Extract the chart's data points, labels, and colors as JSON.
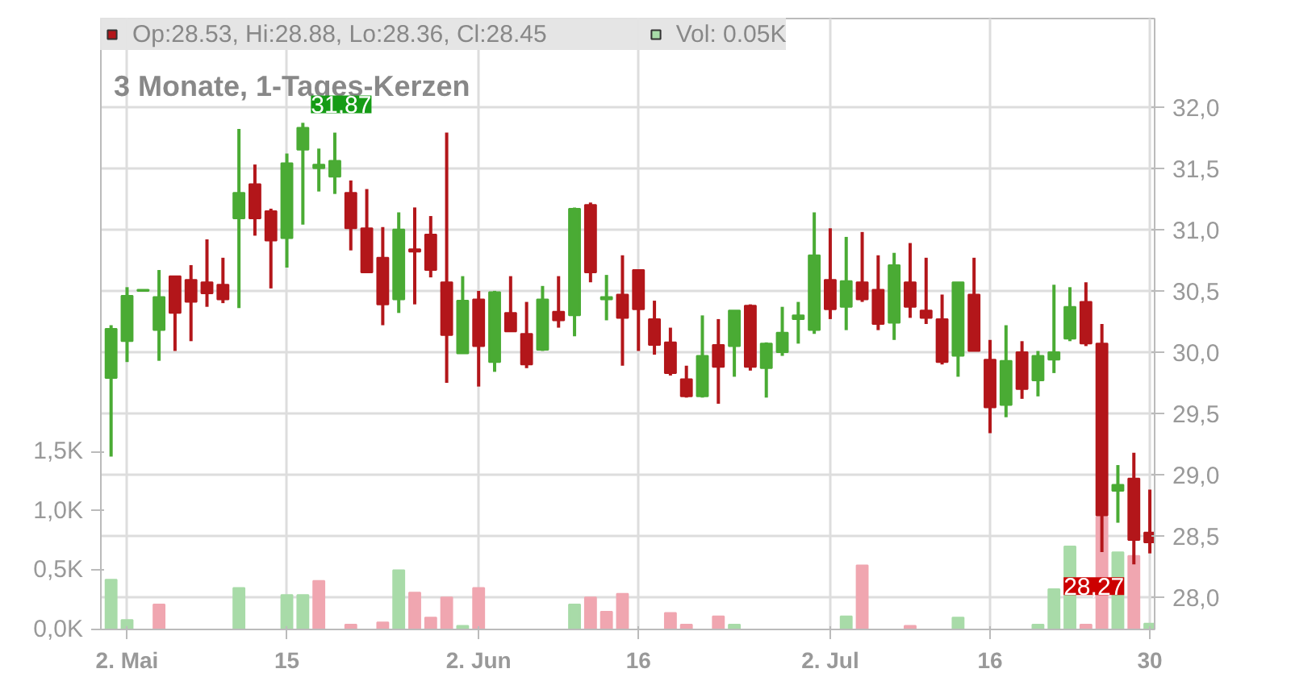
{
  "chart_data": {
    "type": "candlestick",
    "title": "3 Monate, 1-Tages-Kerzen",
    "categories": [
      null,
      "2. Mai",
      null,
      null,
      null,
      null,
      null,
      null,
      null,
      null,
      null,
      "15",
      null,
      null,
      null,
      null,
      null,
      null,
      null,
      null,
      null,
      null,
      null,
      "2. Jun",
      null,
      null,
      null,
      null,
      null,
      null,
      null,
      null,
      null,
      "16",
      null,
      null,
      null,
      null,
      null,
      null,
      null,
      null,
      null,
      null,
      null,
      "2. Jul",
      null,
      null,
      null,
      null,
      null,
      null,
      null,
      null,
      null,
      "16",
      null,
      null,
      null,
      null,
      null,
      null,
      null,
      null,
      null,
      "30"
    ],
    "series": [
      {
        "name": "Op:28.53, Hi:28.88, Lo:28.36, Cl:28.45",
        "color": "#b3161a",
        "colors": [
          "#4aab34",
          "#4aab34",
          "#4aab34",
          "#4aab34",
          "#b3161a",
          "#b3161a",
          "#b3161a",
          "#b3161a",
          "#4aab34",
          "#b3161a",
          "#b3161a",
          "#4aab34",
          "#4aab34",
          "#4aab34",
          "#4aab34",
          "#b3161a",
          "#b3161a",
          "#b3161a",
          "#4aab34",
          "#b3161a",
          "#b3161a",
          "#b3161a",
          "#4aab34",
          "#b3161a",
          "#4aab34",
          "#b3161a",
          "#b3161a",
          "#4aab34",
          "#b3161a",
          "#4aab34",
          "#b3161a",
          "#4aab34",
          "#b3161a",
          "#b3161a",
          "#b3161a",
          "#b3161a",
          "#b3161a",
          "#4aab34",
          "#b3161a",
          "#4aab34",
          "#b3161a",
          "#4aab34",
          "#4aab34",
          "#4aab34",
          "#4aab34",
          "#b3161a",
          "#4aab34",
          "#b3161a",
          "#b3161a",
          "#4aab34",
          "#b3161a",
          "#b3161a",
          "#b3161a",
          "#4aab34",
          "#b3161a",
          "#b3161a",
          "#4aab34",
          "#b3161a",
          "#4aab34",
          "#4aab34",
          "#4aab34",
          "#b3161a",
          "#b3161a",
          "#4aab34",
          "#b3161a",
          "#b3161a"
        ],
        "ohlc": [
          [
            29.79,
            30.22,
            29.15,
            30.19
          ],
          [
            30.09,
            30.53,
            29.92,
            30.46
          ],
          [
            30.5,
            30.51,
            30.5,
            30.51
          ],
          [
            30.18,
            30.67,
            29.93,
            30.45
          ],
          [
            30.62,
            30.62,
            30.01,
            30.32
          ],
          [
            30.59,
            30.71,
            30.09,
            30.41
          ],
          [
            30.57,
            30.92,
            30.37,
            30.48
          ],
          [
            30.55,
            30.77,
            30.4,
            30.43
          ],
          [
            31.09,
            31.82,
            30.36,
            31.3
          ],
          [
            31.37,
            31.53,
            30.95,
            31.09
          ],
          [
            31.15,
            31.17,
            30.52,
            30.91
          ],
          [
            30.93,
            31.62,
            30.69,
            31.54
          ],
          [
            31.65,
            31.87,
            31.04,
            31.83
          ],
          [
            31.5,
            31.66,
            31.31,
            31.53
          ],
          [
            31.43,
            31.79,
            31.29,
            31.56
          ],
          [
            31.3,
            31.4,
            30.83,
            31.01
          ],
          [
            31.01,
            31.33,
            30.65,
            30.65
          ],
          [
            30.77,
            31.02,
            30.22,
            30.39
          ],
          [
            30.43,
            31.14,
            30.32,
            31.0
          ],
          [
            30.84,
            31.18,
            30.39,
            30.82
          ],
          [
            30.96,
            31.11,
            30.61,
            30.67
          ],
          [
            30.57,
            31.79,
            29.75,
            30.14
          ],
          [
            29.99,
            30.62,
            29.99,
            30.42
          ],
          [
            30.43,
            30.5,
            29.72,
            30.05
          ],
          [
            29.92,
            30.5,
            29.84,
            30.49
          ],
          [
            30.32,
            30.62,
            30.17,
            30.17
          ],
          [
            30.15,
            30.41,
            29.87,
            29.9
          ],
          [
            30.02,
            30.54,
            30.01,
            30.43
          ],
          [
            30.33,
            30.62,
            30.2,
            30.26
          ],
          [
            30.3,
            31.18,
            30.13,
            31.17
          ],
          [
            31.2,
            31.22,
            30.57,
            30.65
          ],
          [
            30.43,
            30.63,
            30.26,
            30.45
          ],
          [
            30.47,
            30.79,
            29.89,
            30.28
          ],
          [
            30.67,
            30.67,
            30.01,
            30.35
          ],
          [
            30.27,
            30.42,
            29.98,
            30.06
          ],
          [
            30.08,
            30.2,
            29.81,
            29.83
          ],
          [
            29.78,
            29.89,
            29.63,
            29.64
          ],
          [
            29.64,
            30.3,
            29.63,
            29.97
          ],
          [
            30.06,
            30.27,
            29.58,
            29.88
          ],
          [
            30.05,
            30.34,
            29.8,
            30.34
          ],
          [
            30.38,
            30.39,
            29.85,
            29.88
          ],
          [
            29.87,
            30.08,
            29.63,
            30.07
          ],
          [
            30.0,
            30.37,
            29.97,
            30.16
          ],
          [
            30.27,
            30.41,
            30.07,
            30.3
          ],
          [
            30.18,
            31.14,
            30.15,
            30.79
          ],
          [
            30.59,
            31.01,
            30.27,
            30.35
          ],
          [
            30.37,
            30.94,
            30.18,
            30.58
          ],
          [
            30.57,
            30.98,
            30.41,
            30.43
          ],
          [
            30.51,
            30.79,
            30.18,
            30.23
          ],
          [
            30.24,
            30.81,
            30.1,
            30.71
          ],
          [
            30.57,
            30.89,
            30.28,
            30.37
          ],
          [
            30.34,
            30.77,
            30.23,
            30.28
          ],
          [
            30.27,
            30.47,
            29.9,
            29.92
          ],
          [
            29.97,
            30.57,
            29.8,
            30.57
          ],
          [
            30.47,
            30.77,
            30.01,
            30.01
          ],
          [
            29.94,
            30.1,
            29.34,
            29.55
          ],
          [
            29.57,
            30.22,
            29.47,
            29.93
          ],
          [
            30.0,
            30.09,
            29.62,
            29.7
          ],
          [
            29.77,
            30.01,
            29.64,
            29.97
          ],
          [
            29.94,
            30.55,
            29.83,
            30.0
          ],
          [
            30.11,
            30.53,
            30.09,
            30.37
          ],
          [
            30.41,
            30.57,
            30.05,
            30.07
          ],
          [
            30.07,
            30.23,
            28.37,
            28.67
          ],
          [
            28.87,
            29.08,
            28.61,
            28.92
          ],
          [
            28.97,
            29.18,
            28.27,
            28.47
          ],
          [
            28.53,
            28.88,
            28.36,
            28.45
          ]
        ]
      },
      {
        "type": "bar",
        "name": "Vol: 0.05K",
        "axis": "y2",
        "color": "#a8dba8",
        "colors": [
          "#a8dba8",
          "#a8dba8",
          "#a8dba8",
          "#f0a6b0",
          "#f0a6b0",
          "#f0a6b0",
          "#f0a6b0",
          "#f0a6b0",
          "#a8dba8",
          "#f0a6b0",
          "#f0a6b0",
          "#a8dba8",
          "#a8dba8",
          "#f0a6b0",
          "#a8dba8",
          "#f0a6b0",
          "#f0a6b0",
          "#f0a6b0",
          "#a8dba8",
          "#f0a6b0",
          "#f0a6b0",
          "#f0a6b0",
          "#a8dba8",
          "#f0a6b0",
          "#a8dba8",
          "#f0a6b0",
          "#f0a6b0",
          "#a8dba8",
          "#f0a6b0",
          "#a8dba8",
          "#f0a6b0",
          "#f0a6b0",
          "#f0a6b0",
          "#f0a6b0",
          "#f0a6b0",
          "#f0a6b0",
          "#f0a6b0",
          "#a8dba8",
          "#f0a6b0",
          "#a8dba8",
          "#f0a6b0",
          "#a8dba8",
          "#a8dba8",
          "#a8dba8",
          "#a8dba8",
          "#f0a6b0",
          "#a8dba8",
          "#f0a6b0",
          "#f0a6b0",
          "#a8dba8",
          "#f0a6b0",
          "#f0a6b0",
          "#f0a6b0",
          "#a8dba8",
          "#f0a6b0",
          "#f0a6b0",
          "#a8dba8",
          "#f0a6b0",
          "#a8dba8",
          "#a8dba8",
          "#a8dba8",
          "#f0a6b0",
          "#f0a6b0",
          "#a8dba8",
          "#f0a6b0",
          "#a8dba8"
        ],
        "values": [
          0.42,
          0.08,
          0,
          0.21,
          0,
          0,
          0,
          0,
          0.35,
          0,
          0,
          0.29,
          0.29,
          0.41,
          0,
          0.04,
          0,
          0.06,
          0.5,
          0.31,
          0.1,
          0.27,
          0.03,
          0.35,
          0,
          0,
          0,
          0,
          0,
          0.21,
          0.27,
          0.15,
          0.3,
          0,
          0,
          0.14,
          0.04,
          0,
          0.11,
          0.04,
          0,
          0,
          0,
          0,
          0,
          0,
          0.11,
          0.54,
          0,
          0,
          0.03,
          0,
          0,
          0.1,
          0,
          0,
          0,
          0,
          0.04,
          0.34,
          0.7,
          0.04,
          0.95,
          0.65,
          0.62,
          0.05
        ]
      }
    ],
    "ylim": [
      27.74,
      32.72
    ],
    "yticks": [
      {
        "value": 28,
        "label": "28,0"
      },
      {
        "value": 28.5,
        "label": "28,5"
      },
      {
        "value": 29,
        "label": "29,0"
      },
      {
        "value": 29.5,
        "label": "29,5"
      },
      {
        "value": 30,
        "label": "30,0"
      },
      {
        "value": 30.5,
        "label": "30,5"
      },
      {
        "value": 31,
        "label": "31,0"
      },
      {
        "value": 31.5,
        "label": "31,5"
      },
      {
        "value": 32,
        "label": "32,0"
      }
    ],
    "y2lim": [
      0,
      5.15
    ],
    "y2ticks": [
      {
        "value": 0,
        "label": "0,0K"
      },
      {
        "value": 0.5,
        "label": "0,5K"
      },
      {
        "value": 1.0,
        "label": "1,0K"
      },
      {
        "value": 1.5,
        "label": "1,5K"
      }
    ],
    "annotations": [
      "31,87",
      "28,27"
    ],
    "grid": true,
    "legend": "top"
  }
}
